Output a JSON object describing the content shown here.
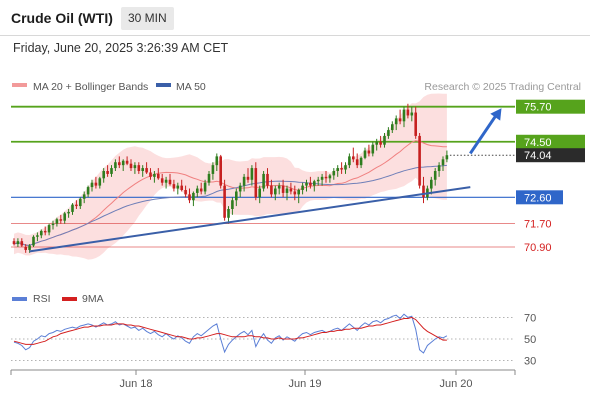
{
  "header": {
    "title": "Crude Oil (WTI)",
    "timeframe": "30 MIN",
    "datetime": "Friday, June 20, 2025 3:26:39 AM CET"
  },
  "legend": [
    {
      "label": "MA 20 + Bollinger Bands",
      "color": "#f29a9a"
    },
    {
      "label": "MA 50",
      "color": "#3a5fa8"
    }
  ],
  "source": "Research © 2025 Trading Central",
  "chart_data": [
    {
      "type": "candlestick",
      "title": "",
      "xlabel": "",
      "ylabel": "",
      "x_ticks": [
        "Jun 18",
        "Jun 19",
        "Jun 20"
      ],
      "ylim": [
        69.6,
        76.1
      ],
      "grid": false,
      "levels": [
        {
          "value": 75.7,
          "label": "75.70",
          "color": "#56a31c",
          "kind": "resistance"
        },
        {
          "value": 74.5,
          "label": "74.50",
          "color": "#56a31c",
          "kind": "resistance"
        },
        {
          "value": 74.04,
          "label": "74.04",
          "color": "#2b2b2b",
          "kind": "last-price"
        },
        {
          "value": 72.6,
          "label": "72.60",
          "color": "#2f66c9",
          "kind": "pivot"
        },
        {
          "value": 71.7,
          "label": "71.70",
          "color": "#d42020",
          "kind": "support"
        },
        {
          "value": 70.9,
          "label": "70.90",
          "color": "#d42020",
          "kind": "support"
        }
      ],
      "trendline": {
        "from": {
          "bar": 4,
          "price": 70.75
        },
        "to": {
          "bar": 117,
          "price": 72.95
        }
      },
      "projection": {
        "from": {
          "bar": 117,
          "price": 74.1
        },
        "to": {
          "bar": 125,
          "price": 75.65
        }
      },
      "ohlc": [
        [
          71.1,
          71.2,
          70.95,
          71.0
        ],
        [
          71.0,
          71.2,
          70.9,
          71.1
        ],
        [
          71.1,
          71.2,
          70.9,
          70.95
        ],
        [
          70.9,
          71.0,
          70.7,
          70.8
        ],
        [
          70.8,
          71.0,
          70.7,
          70.95
        ],
        [
          70.95,
          71.3,
          70.9,
          71.25
        ],
        [
          71.25,
          71.4,
          71.1,
          71.3
        ],
        [
          71.3,
          71.5,
          71.2,
          71.45
        ],
        [
          71.45,
          71.6,
          71.3,
          71.4
        ],
        [
          71.4,
          71.7,
          71.3,
          71.65
        ],
        [
          71.65,
          71.8,
          71.5,
          71.7
        ],
        [
          71.7,
          71.9,
          71.6,
          71.85
        ],
        [
          71.85,
          72.0,
          71.7,
          71.8
        ],
        [
          71.8,
          72.1,
          71.7,
          72.05
        ],
        [
          72.05,
          72.2,
          71.9,
          72.1
        ],
        [
          72.1,
          72.4,
          72.0,
          72.35
        ],
        [
          72.35,
          72.5,
          72.2,
          72.3
        ],
        [
          72.3,
          72.6,
          72.2,
          72.55
        ],
        [
          72.55,
          72.8,
          72.4,
          72.7
        ],
        [
          72.7,
          73.0,
          72.6,
          72.95
        ],
        [
          72.95,
          73.2,
          72.8,
          73.1
        ],
        [
          73.1,
          73.3,
          72.9,
          73.0
        ],
        [
          73.0,
          73.3,
          72.9,
          73.25
        ],
        [
          73.25,
          73.6,
          73.1,
          73.5
        ],
        [
          73.5,
          73.7,
          73.3,
          73.4
        ],
        [
          73.4,
          73.7,
          73.3,
          73.6
        ],
        [
          73.6,
          73.9,
          73.5,
          73.8
        ],
        [
          73.8,
          74.0,
          73.6,
          73.7
        ],
        [
          73.7,
          73.9,
          73.5,
          73.85
        ],
        [
          73.85,
          74.0,
          73.7,
          73.75
        ],
        [
          73.75,
          73.9,
          73.5,
          73.6
        ],
        [
          73.6,
          73.8,
          73.4,
          73.7
        ],
        [
          73.7,
          73.8,
          73.4,
          73.5
        ],
        [
          73.5,
          73.7,
          73.3,
          73.6
        ],
        [
          73.6,
          73.8,
          73.4,
          73.45
        ],
        [
          73.45,
          73.6,
          73.2,
          73.3
        ],
        [
          73.3,
          73.5,
          73.1,
          73.4
        ],
        [
          73.4,
          73.6,
          73.2,
          73.25
        ],
        [
          73.25,
          73.4,
          73.0,
          73.1
        ],
        [
          73.1,
          73.3,
          72.9,
          73.2
        ],
        [
          73.2,
          73.4,
          73.0,
          73.05
        ],
        [
          73.05,
          73.2,
          72.8,
          72.9
        ],
        [
          72.9,
          73.1,
          72.7,
          73.0
        ],
        [
          73.0,
          73.2,
          72.8,
          72.85
        ],
        [
          72.85,
          73.0,
          72.6,
          72.7
        ],
        [
          72.7,
          72.9,
          72.4,
          72.5
        ],
        [
          72.5,
          72.8,
          72.3,
          72.75
        ],
        [
          72.75,
          73.0,
          72.6,
          72.9
        ],
        [
          72.9,
          73.1,
          72.7,
          72.8
        ],
        [
          72.8,
          73.2,
          72.7,
          73.1
        ],
        [
          73.1,
          73.5,
          73.0,
          73.4
        ],
        [
          73.4,
          73.8,
          73.2,
          73.7
        ],
        [
          73.7,
          74.1,
          73.5,
          74.0
        ],
        [
          74.0,
          74.05,
          72.9,
          73.0
        ],
        [
          73.0,
          73.2,
          71.8,
          71.9
        ],
        [
          71.9,
          72.3,
          71.7,
          72.2
        ],
        [
          72.2,
          72.6,
          72.0,
          72.5
        ],
        [
          72.5,
          72.9,
          72.3,
          72.8
        ],
        [
          72.8,
          73.1,
          72.6,
          73.0
        ],
        [
          73.0,
          73.4,
          72.8,
          73.3
        ],
        [
          73.3,
          73.6,
          73.1,
          73.2
        ],
        [
          73.2,
          73.7,
          73.0,
          73.6
        ],
        [
          73.6,
          73.8,
          72.5,
          72.6
        ],
        [
          72.6,
          73.0,
          72.4,
          72.9
        ],
        [
          72.9,
          73.5,
          72.8,
          73.4
        ],
        [
          73.4,
          73.6,
          72.9,
          73.0
        ],
        [
          73.0,
          73.2,
          72.6,
          72.7
        ],
        [
          72.7,
          73.0,
          72.5,
          72.9
        ],
        [
          72.9,
          73.1,
          72.7,
          73.0
        ],
        [
          73.0,
          73.2,
          72.6,
          72.75
        ],
        [
          72.75,
          73.0,
          72.5,
          72.9
        ],
        [
          72.9,
          73.1,
          72.7,
          72.8
        ],
        [
          72.8,
          73.0,
          72.5,
          72.7
        ],
        [
          72.7,
          72.9,
          72.4,
          72.85
        ],
        [
          72.85,
          73.1,
          72.7,
          73.0
        ],
        [
          73.0,
          73.2,
          72.8,
          73.1
        ],
        [
          73.1,
          73.3,
          72.9,
          73.0
        ],
        [
          73.0,
          73.2,
          72.8,
          73.15
        ],
        [
          73.15,
          73.3,
          73.0,
          73.2
        ],
        [
          73.2,
          73.4,
          73.0,
          73.3
        ],
        [
          73.3,
          73.5,
          73.1,
          73.25
        ],
        [
          73.25,
          73.4,
          73.1,
          73.35
        ],
        [
          73.35,
          73.6,
          73.2,
          73.5
        ],
        [
          73.5,
          73.7,
          73.3,
          73.6
        ],
        [
          73.6,
          73.8,
          73.4,
          73.55
        ],
        [
          73.55,
          73.8,
          73.4,
          73.7
        ],
        [
          73.7,
          74.1,
          73.6,
          74.0
        ],
        [
          74.0,
          74.3,
          73.8,
          73.9
        ],
        [
          73.9,
          74.1,
          73.6,
          73.7
        ],
        [
          73.7,
          74.0,
          73.6,
          73.95
        ],
        [
          73.95,
          74.3,
          73.9,
          74.2
        ],
        [
          74.2,
          74.4,
          74.0,
          74.1
        ],
        [
          74.1,
          74.5,
          74.0,
          74.4
        ],
        [
          74.4,
          74.6,
          74.2,
          74.5
        ],
        [
          74.5,
          74.7,
          74.3,
          74.4
        ],
        [
          74.4,
          74.8,
          74.3,
          74.7
        ],
        [
          74.7,
          75.0,
          74.6,
          74.9
        ],
        [
          74.9,
          75.2,
          74.8,
          75.1
        ],
        [
          75.1,
          75.4,
          74.9,
          75.3
        ],
        [
          75.3,
          75.6,
          75.1,
          75.2
        ],
        [
          75.2,
          75.7,
          75.0,
          75.6
        ],
        [
          75.6,
          75.8,
          75.3,
          75.4
        ],
        [
          75.4,
          75.7,
          75.2,
          75.5
        ],
        [
          75.5,
          75.7,
          74.6,
          74.7
        ],
        [
          74.7,
          74.8,
          72.9,
          73.0
        ],
        [
          73.0,
          73.3,
          72.4,
          72.6
        ],
        [
          72.6,
          73.0,
          72.5,
          72.9
        ],
        [
          72.9,
          73.3,
          72.7,
          73.2
        ],
        [
          73.2,
          73.6,
          73.0,
          73.5
        ],
        [
          73.5,
          73.8,
          73.3,
          73.7
        ],
        [
          73.7,
          74.0,
          73.5,
          73.9
        ],
        [
          73.9,
          74.2,
          73.8,
          74.04
        ]
      ]
    },
    {
      "type": "line",
      "title": "",
      "series": [
        {
          "name": "RSI",
          "color": "#5b7fd6"
        },
        {
          "name": "9MA",
          "color": "#d42020"
        }
      ],
      "ylim": [
        25,
        75
      ],
      "y_ticks": [
        70,
        50,
        30
      ],
      "rsi": [
        47,
        46,
        44,
        40,
        42,
        48,
        50,
        53,
        52,
        55,
        56,
        58,
        57,
        59,
        60,
        61,
        60,
        62,
        63,
        64,
        63,
        61,
        63,
        65,
        63,
        64,
        66,
        63,
        64,
        62,
        60,
        61,
        58,
        60,
        57,
        55,
        57,
        54,
        52,
        55,
        52,
        50,
        53,
        51,
        48,
        46,
        52,
        55,
        53,
        56,
        59,
        62,
        64,
        50,
        38,
        45,
        49,
        52,
        55,
        57,
        54,
        58,
        43,
        50,
        55,
        49,
        46,
        51,
        53,
        49,
        52,
        50,
        48,
        52,
        55,
        56,
        54,
        56,
        57,
        58,
        56,
        57,
        59,
        60,
        58,
        61,
        64,
        61,
        58,
        62,
        65,
        63,
        66,
        67,
        65,
        68,
        69,
        71,
        72,
        69,
        73,
        70,
        71,
        59,
        40,
        37,
        44,
        47,
        50,
        52,
        51,
        53
      ],
      "ma9": [
        48,
        47,
        46,
        45,
        45,
        45,
        46,
        47,
        48,
        50,
        52,
        53,
        55,
        56,
        57,
        58,
        59,
        60,
        61,
        61,
        62,
        62,
        62,
        63,
        63,
        63,
        64,
        64,
        64,
        63,
        63,
        62,
        62,
        61,
        60,
        59,
        58,
        57,
        56,
        55,
        54,
        53,
        52,
        52,
        51,
        50,
        50,
        51,
        51,
        52,
        53,
        54,
        55,
        55,
        54,
        53,
        52,
        52,
        52,
        52,
        53,
        53,
        52,
        52,
        51,
        51,
        50,
        50,
        51,
        50,
        50,
        50,
        50,
        51,
        51,
        52,
        53,
        54,
        55,
        56,
        56,
        57,
        57,
        58,
        58,
        59,
        59,
        60,
        60,
        60,
        61,
        62,
        62,
        63,
        63,
        64,
        65,
        66,
        67,
        68,
        69,
        69,
        70,
        68,
        64,
        60,
        57,
        55,
        53,
        51,
        49,
        49
      ]
    }
  ]
}
